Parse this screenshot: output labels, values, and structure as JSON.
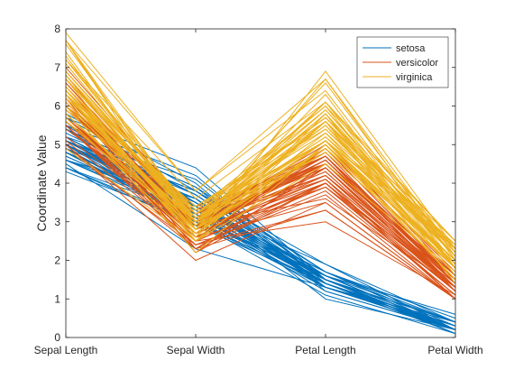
{
  "chart_data": {
    "type": "line",
    "subtype": "parallel-coordinates",
    "ylabel": "Coordinate Value",
    "categories": [
      "Sepal Length",
      "Sepal Width",
      "Petal Length",
      "Petal Width"
    ],
    "ylim": [
      0,
      8
    ],
    "yticks": [
      "0",
      "1",
      "2",
      "3",
      "4",
      "5",
      "6",
      "7",
      "8"
    ],
    "grid": false,
    "legend": {
      "placement": "top-right",
      "entries": [
        {
          "name": "setosa",
          "color": "#0072BD"
        },
        {
          "name": "versicolor",
          "color": "#D95319"
        },
        {
          "name": "virginica",
          "color": "#EDB120"
        }
      ]
    },
    "series": [
      {
        "name": "setosa",
        "color": "#0072BD",
        "lines": [
          [
            5.1,
            3.5,
            1.4,
            0.2
          ],
          [
            4.9,
            3.0,
            1.4,
            0.2
          ],
          [
            4.7,
            3.2,
            1.3,
            0.2
          ],
          [
            4.6,
            3.1,
            1.5,
            0.2
          ],
          [
            5.0,
            3.6,
            1.4,
            0.2
          ],
          [
            5.4,
            3.9,
            1.7,
            0.4
          ],
          [
            4.6,
            3.4,
            1.4,
            0.3
          ],
          [
            5.0,
            3.4,
            1.5,
            0.2
          ],
          [
            4.4,
            2.9,
            1.4,
            0.2
          ],
          [
            4.9,
            3.1,
            1.5,
            0.1
          ],
          [
            5.4,
            3.7,
            1.5,
            0.2
          ],
          [
            4.8,
            3.4,
            1.6,
            0.2
          ],
          [
            4.8,
            3.0,
            1.4,
            0.1
          ],
          [
            4.3,
            3.0,
            1.1,
            0.1
          ],
          [
            5.8,
            4.0,
            1.2,
            0.2
          ],
          [
            5.7,
            4.4,
            1.5,
            0.4
          ],
          [
            5.4,
            3.9,
            1.3,
            0.4
          ],
          [
            5.1,
            3.5,
            1.4,
            0.3
          ],
          [
            5.7,
            3.8,
            1.7,
            0.3
          ],
          [
            5.1,
            3.8,
            1.5,
            0.3
          ],
          [
            5.4,
            3.4,
            1.7,
            0.2
          ],
          [
            5.1,
            3.7,
            1.5,
            0.4
          ],
          [
            4.6,
            3.6,
            1.0,
            0.2
          ],
          [
            5.1,
            3.3,
            1.7,
            0.5
          ],
          [
            4.8,
            3.4,
            1.9,
            0.2
          ],
          [
            5.0,
            3.0,
            1.6,
            0.2
          ],
          [
            5.0,
            3.4,
            1.6,
            0.4
          ],
          [
            5.2,
            3.5,
            1.5,
            0.2
          ],
          [
            5.2,
            3.4,
            1.4,
            0.2
          ],
          [
            4.7,
            3.2,
            1.6,
            0.2
          ],
          [
            4.8,
            3.1,
            1.6,
            0.2
          ],
          [
            5.4,
            3.4,
            1.5,
            0.4
          ],
          [
            5.2,
            4.1,
            1.5,
            0.1
          ],
          [
            5.5,
            4.2,
            1.4,
            0.2
          ],
          [
            4.9,
            3.1,
            1.5,
            0.2
          ],
          [
            5.0,
            3.2,
            1.2,
            0.2
          ],
          [
            5.5,
            3.5,
            1.3,
            0.2
          ],
          [
            4.9,
            3.6,
            1.4,
            0.1
          ],
          [
            4.4,
            3.0,
            1.3,
            0.2
          ],
          [
            5.1,
            3.4,
            1.5,
            0.2
          ],
          [
            5.0,
            3.5,
            1.3,
            0.3
          ],
          [
            4.5,
            2.3,
            1.3,
            0.3
          ],
          [
            4.4,
            3.2,
            1.3,
            0.2
          ],
          [
            5.0,
            3.5,
            1.6,
            0.6
          ],
          [
            5.1,
            3.8,
            1.9,
            0.4
          ],
          [
            4.8,
            3.0,
            1.4,
            0.3
          ],
          [
            5.1,
            3.8,
            1.6,
            0.2
          ],
          [
            4.6,
            3.2,
            1.4,
            0.2
          ],
          [
            5.3,
            3.7,
            1.5,
            0.2
          ],
          [
            5.0,
            3.3,
            1.4,
            0.2
          ]
        ]
      },
      {
        "name": "versicolor",
        "color": "#D95319",
        "lines": [
          [
            7.0,
            3.2,
            4.7,
            1.4
          ],
          [
            6.4,
            3.2,
            4.5,
            1.5
          ],
          [
            6.9,
            3.1,
            4.9,
            1.5
          ],
          [
            5.5,
            2.3,
            4.0,
            1.3
          ],
          [
            6.5,
            2.8,
            4.6,
            1.5
          ],
          [
            5.7,
            2.8,
            4.5,
            1.3
          ],
          [
            6.3,
            3.3,
            4.7,
            1.6
          ],
          [
            4.9,
            2.4,
            3.3,
            1.0
          ],
          [
            6.6,
            2.9,
            4.6,
            1.3
          ],
          [
            5.2,
            2.7,
            3.9,
            1.4
          ],
          [
            5.0,
            2.0,
            3.5,
            1.0
          ],
          [
            5.9,
            3.0,
            4.2,
            1.5
          ],
          [
            6.0,
            2.2,
            4.0,
            1.0
          ],
          [
            6.1,
            2.9,
            4.7,
            1.4
          ],
          [
            5.6,
            2.9,
            3.6,
            1.3
          ],
          [
            6.7,
            3.1,
            4.4,
            1.4
          ],
          [
            5.6,
            3.0,
            4.5,
            1.5
          ],
          [
            5.8,
            2.7,
            4.1,
            1.0
          ],
          [
            6.2,
            2.2,
            4.5,
            1.5
          ],
          [
            5.6,
            2.5,
            3.9,
            1.1
          ],
          [
            5.9,
            3.2,
            4.8,
            1.8
          ],
          [
            6.1,
            2.8,
            4.0,
            1.3
          ],
          [
            6.3,
            2.5,
            4.9,
            1.5
          ],
          [
            6.1,
            2.8,
            4.7,
            1.2
          ],
          [
            6.4,
            2.9,
            4.3,
            1.3
          ],
          [
            6.6,
            3.0,
            4.4,
            1.4
          ],
          [
            6.8,
            2.8,
            4.8,
            1.4
          ],
          [
            6.7,
            3.0,
            5.0,
            1.7
          ],
          [
            6.0,
            2.9,
            4.5,
            1.5
          ],
          [
            5.7,
            2.6,
            3.5,
            1.0
          ],
          [
            5.5,
            2.4,
            3.8,
            1.1
          ],
          [
            5.5,
            2.4,
            3.7,
            1.0
          ],
          [
            5.8,
            2.7,
            3.9,
            1.2
          ],
          [
            6.0,
            2.7,
            5.1,
            1.6
          ],
          [
            5.4,
            3.0,
            4.5,
            1.5
          ],
          [
            6.0,
            3.4,
            4.5,
            1.6
          ],
          [
            6.7,
            3.1,
            4.7,
            1.5
          ],
          [
            6.3,
            2.3,
            4.4,
            1.3
          ],
          [
            5.6,
            3.0,
            4.1,
            1.3
          ],
          [
            5.5,
            2.5,
            4.0,
            1.3
          ],
          [
            5.5,
            2.6,
            4.4,
            1.2
          ],
          [
            6.1,
            3.0,
            4.6,
            1.4
          ],
          [
            5.8,
            2.6,
            4.0,
            1.2
          ],
          [
            5.0,
            2.3,
            3.3,
            1.0
          ],
          [
            5.6,
            2.7,
            4.2,
            1.3
          ],
          [
            5.7,
            3.0,
            4.2,
            1.2
          ],
          [
            5.7,
            2.9,
            4.2,
            1.3
          ],
          [
            6.2,
            2.9,
            4.3,
            1.3
          ],
          [
            5.1,
            2.5,
            3.0,
            1.1
          ],
          [
            5.7,
            2.8,
            4.1,
            1.3
          ]
        ]
      },
      {
        "name": "virginica",
        "color": "#EDB120",
        "lines": [
          [
            6.3,
            3.3,
            6.0,
            2.5
          ],
          [
            5.8,
            2.7,
            5.1,
            1.9
          ],
          [
            7.1,
            3.0,
            5.9,
            2.1
          ],
          [
            6.3,
            2.9,
            5.6,
            1.8
          ],
          [
            6.5,
            3.0,
            5.8,
            2.2
          ],
          [
            7.6,
            3.0,
            6.6,
            2.1
          ],
          [
            4.9,
            2.5,
            4.5,
            1.7
          ],
          [
            7.3,
            2.9,
            6.3,
            1.8
          ],
          [
            6.7,
            2.5,
            5.8,
            1.8
          ],
          [
            7.2,
            3.6,
            6.1,
            2.5
          ],
          [
            6.5,
            3.2,
            5.1,
            2.0
          ],
          [
            6.4,
            2.7,
            5.3,
            1.9
          ],
          [
            6.8,
            3.0,
            5.5,
            2.1
          ],
          [
            5.7,
            2.5,
            5.0,
            2.0
          ],
          [
            5.8,
            2.8,
            5.1,
            2.4
          ],
          [
            6.4,
            3.2,
            5.3,
            2.3
          ],
          [
            6.5,
            3.0,
            5.5,
            1.8
          ],
          [
            7.7,
            3.8,
            6.7,
            2.2
          ],
          [
            7.7,
            2.6,
            6.9,
            2.3
          ],
          [
            6.0,
            2.2,
            5.0,
            1.5
          ],
          [
            6.9,
            3.2,
            5.7,
            2.3
          ],
          [
            5.6,
            2.8,
            4.9,
            2.0
          ],
          [
            7.7,
            2.8,
            6.7,
            2.0
          ],
          [
            6.3,
            2.7,
            4.9,
            1.8
          ],
          [
            6.7,
            3.3,
            5.7,
            2.1
          ],
          [
            7.2,
            3.2,
            6.0,
            1.8
          ],
          [
            6.2,
            2.8,
            4.8,
            1.8
          ],
          [
            6.1,
            3.0,
            4.9,
            1.8
          ],
          [
            6.4,
            2.8,
            5.6,
            2.1
          ],
          [
            7.2,
            3.0,
            5.8,
            1.6
          ],
          [
            7.4,
            2.8,
            6.1,
            1.9
          ],
          [
            7.9,
            3.8,
            6.4,
            2.0
          ],
          [
            6.4,
            2.8,
            5.6,
            2.2
          ],
          [
            6.3,
            2.8,
            5.1,
            1.5
          ],
          [
            6.1,
            2.6,
            5.6,
            1.4
          ],
          [
            7.7,
            3.0,
            6.1,
            2.3
          ],
          [
            6.3,
            3.4,
            5.6,
            2.4
          ],
          [
            6.4,
            3.1,
            5.5,
            1.8
          ],
          [
            6.0,
            3.0,
            4.8,
            1.8
          ],
          [
            6.9,
            3.1,
            5.4,
            2.1
          ],
          [
            6.7,
            3.1,
            5.6,
            2.4
          ],
          [
            6.9,
            3.1,
            5.1,
            2.3
          ],
          [
            5.8,
            2.7,
            5.1,
            1.9
          ],
          [
            6.8,
            3.2,
            5.9,
            2.3
          ],
          [
            6.7,
            3.3,
            5.7,
            2.5
          ],
          [
            6.7,
            3.0,
            5.2,
            2.3
          ],
          [
            6.3,
            2.5,
            5.0,
            1.9
          ],
          [
            6.5,
            3.0,
            5.2,
            2.0
          ],
          [
            6.2,
            3.4,
            5.4,
            2.3
          ],
          [
            5.9,
            3.0,
            5.1,
            1.8
          ]
        ]
      }
    ]
  }
}
